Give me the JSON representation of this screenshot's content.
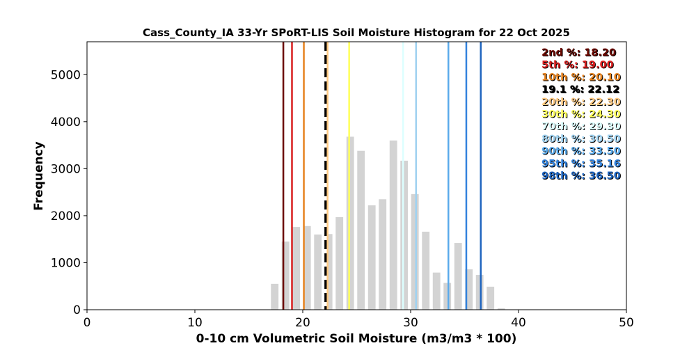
{
  "chart_data": {
    "type": "bar",
    "title": "Cass_County_IA 33-Yr SPoRT-LIS Soil Moisture Histogram for 22 Oct 2025",
    "xlabel": "0-10 cm Volumetric Soil Moisture (m3/m3 * 100)",
    "ylabel": "Frequency",
    "xlim": [
      0,
      50
    ],
    "ylim": [
      0,
      5700
    ],
    "xticks": [
      0,
      10,
      20,
      30,
      40,
      50
    ],
    "xtick_labels": [
      "0",
      "10",
      "20",
      "30",
      "40",
      "50"
    ],
    "yticks": [
      0,
      1000,
      2000,
      3000,
      4000,
      5000
    ],
    "ytick_labels": [
      "0",
      "1000",
      "2000",
      "3000",
      "4000",
      "5000"
    ],
    "grid": false,
    "bar_color": "#d3d3d3",
    "bar_width": 0.7,
    "bars": [
      {
        "x": 17.4,
        "value": 550
      },
      {
        "x": 18.4,
        "value": 1450
      },
      {
        "x": 19.4,
        "value": 1760
      },
      {
        "x": 20.4,
        "value": 1780
      },
      {
        "x": 21.4,
        "value": 1600
      },
      {
        "x": 22.4,
        "value": 1610
      },
      {
        "x": 23.4,
        "value": 1970
      },
      {
        "x": 24.4,
        "value": 3680
      },
      {
        "x": 25.4,
        "value": 3380
      },
      {
        "x": 26.4,
        "value": 2220
      },
      {
        "x": 27.4,
        "value": 2350
      },
      {
        "x": 28.4,
        "value": 3600
      },
      {
        "x": 29.4,
        "value": 3170
      },
      {
        "x": 30.4,
        "value": 2460
      },
      {
        "x": 31.4,
        "value": 1660
      },
      {
        "x": 32.4,
        "value": 790
      },
      {
        "x": 33.4,
        "value": 570
      },
      {
        "x": 34.4,
        "value": 1420
      },
      {
        "x": 35.4,
        "value": 860
      },
      {
        "x": 36.4,
        "value": 740
      },
      {
        "x": 37.4,
        "value": 490
      },
      {
        "x": 38.4,
        "value": 30
      }
    ],
    "reference_lines": [
      {
        "label": "2nd %: 18.20",
        "x": 18.2,
        "color": "#6b0a00",
        "dashed": false
      },
      {
        "label": "5th %: 19.00",
        "x": 19.0,
        "color": "#d81e1e",
        "dashed": false
      },
      {
        "label": "10th %: 20.10",
        "x": 20.1,
        "color": "#e6821e",
        "dashed": false
      },
      {
        "label": "19.1 %: 22.12",
        "x": 22.12,
        "color": "#000000",
        "dashed": true
      },
      {
        "label": "20th %: 22.30",
        "x": 22.3,
        "color": "#ffc880",
        "dashed": false
      },
      {
        "label": "30th %: 24.30",
        "x": 24.3,
        "color": "#ffff5a",
        "dashed": false
      },
      {
        "label": "70th %: 29.30",
        "x": 29.3,
        "color": "#dcffff",
        "dashed": false
      },
      {
        "label": "80th %: 30.50",
        "x": 30.5,
        "color": "#a0d2f0",
        "dashed": false
      },
      {
        "label": "90th %: 33.50",
        "x": 33.5,
        "color": "#5aaaeb",
        "dashed": false
      },
      {
        "label": "95th %: 35.16",
        "x": 35.16,
        "color": "#3282dc",
        "dashed": false
      },
      {
        "label": "98th %: 36.50",
        "x": 36.5,
        "color": "#1e64be",
        "dashed": false
      }
    ]
  }
}
